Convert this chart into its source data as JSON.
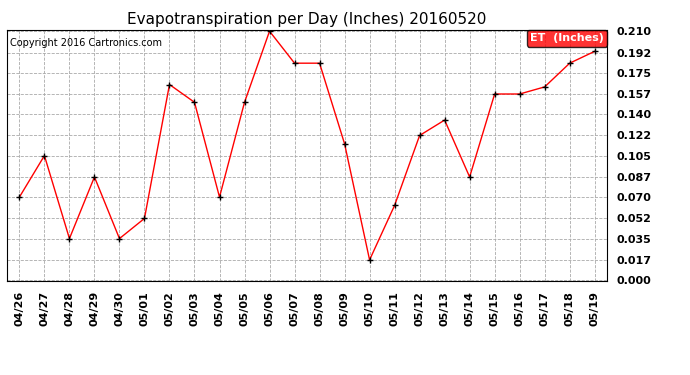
{
  "title": "Evapotranspiration per Day (Inches) 20160520",
  "copyright": "Copyright 2016 Cartronics.com",
  "legend_label": "ET  (Inches)",
  "dates": [
    "04/26",
    "04/27",
    "04/28",
    "04/29",
    "04/30",
    "05/01",
    "05/02",
    "05/03",
    "05/04",
    "05/05",
    "05/06",
    "05/07",
    "05/08",
    "05/09",
    "05/10",
    "05/11",
    "05/12",
    "05/13",
    "05/14",
    "05/15",
    "05/16",
    "05/17",
    "05/18",
    "05/19"
  ],
  "values": [
    0.07,
    0.105,
    0.035,
    0.087,
    0.035,
    0.052,
    0.165,
    0.15,
    0.07,
    0.15,
    0.21,
    0.183,
    0.183,
    0.115,
    0.017,
    0.063,
    0.122,
    0.135,
    0.087,
    0.157,
    0.157,
    0.163,
    0.183,
    0.193
  ],
  "ylim": [
    0.0,
    0.21
  ],
  "yticks": [
    0.0,
    0.017,
    0.035,
    0.052,
    0.07,
    0.087,
    0.105,
    0.122,
    0.14,
    0.157,
    0.175,
    0.192,
    0.21
  ],
  "line_color": "red",
  "marker_color": "black",
  "bg_color": "white",
  "grid_color": "#aaaaaa",
  "legend_bg": "red",
  "legend_text_color": "white",
  "title_fontsize": 11,
  "copyright_fontsize": 7,
  "tick_fontsize": 8,
  "legend_fontsize": 8
}
